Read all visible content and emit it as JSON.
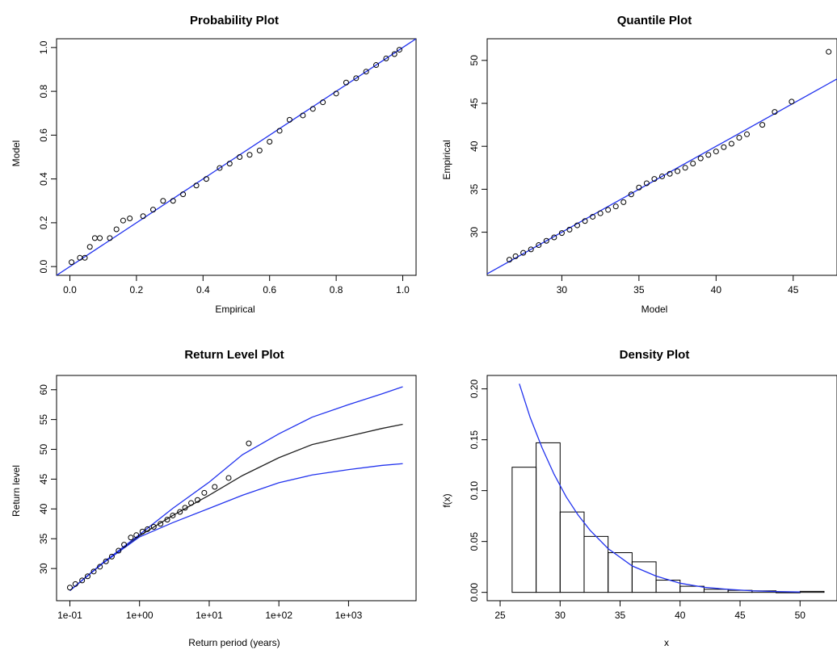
{
  "chart_data": [
    {
      "type": "scatter",
      "title": "Probability Plot",
      "xlabel": "Empirical",
      "ylabel": "Model",
      "xlim": [
        0,
        1
      ],
      "ylim": [
        0,
        1
      ],
      "xticks": [
        0.0,
        0.2,
        0.4,
        0.6,
        0.8,
        1.0
      ],
      "xtick_labels": [
        "0.0",
        "0.2",
        "0.4",
        "0.6",
        "0.8",
        "1.0"
      ],
      "yticks": [
        0.0,
        0.2,
        0.4,
        0.6,
        0.8,
        1.0
      ],
      "ytick_labels": [
        "0.0",
        "0.2",
        "0.4",
        "0.6",
        "0.8",
        "1.0"
      ],
      "series": [
        {
          "marker": "open-circle",
          "x": [
            0.005,
            0.03,
            0.045,
            0.06,
            0.075,
            0.09,
            0.12,
            0.14,
            0.16,
            0.18,
            0.22,
            0.25,
            0.28,
            0.31,
            0.34,
            0.38,
            0.41,
            0.45,
            0.48,
            0.51,
            0.54,
            0.57,
            0.6,
            0.63,
            0.66,
            0.7,
            0.73,
            0.76,
            0.8,
            0.83,
            0.86,
            0.89,
            0.92,
            0.95,
            0.975,
            0.99
          ],
          "y": [
            0.02,
            0.04,
            0.04,
            0.09,
            0.13,
            0.13,
            0.13,
            0.17,
            0.21,
            0.22,
            0.23,
            0.26,
            0.3,
            0.3,
            0.33,
            0.37,
            0.4,
            0.45,
            0.47,
            0.5,
            0.51,
            0.53,
            0.57,
            0.62,
            0.67,
            0.69,
            0.72,
            0.75,
            0.79,
            0.84,
            0.86,
            0.89,
            0.92,
            0.95,
            0.97,
            0.99
          ]
        }
      ],
      "reference_line": {
        "from": [
          0,
          0
        ],
        "to": [
          1,
          1
        ],
        "color": "#2233ee"
      }
    },
    {
      "type": "scatter",
      "title": "Quantile Plot",
      "xlabel": "Model",
      "ylabel": "Empirical",
      "xlim": [
        26,
        47
      ],
      "ylim": [
        26,
        51.5
      ],
      "xticks": [
        30,
        35,
        40,
        45
      ],
      "xtick_labels": [
        "30",
        "35",
        "40",
        "45"
      ],
      "yticks": [
        30,
        35,
        40,
        45,
        50
      ],
      "ytick_labels": [
        "30",
        "35",
        "40",
        "45",
        "50"
      ],
      "series": [
        {
          "marker": "open-circle",
          "x": [
            26.6,
            27.0,
            27.5,
            28.0,
            28.5,
            29.0,
            29.5,
            30.0,
            30.5,
            31.0,
            31.5,
            32.0,
            32.5,
            33.0,
            33.5,
            34.0,
            34.5,
            35.0,
            35.5,
            36.0,
            36.5,
            37.0,
            37.5,
            38.0,
            38.5,
            39.0,
            39.5,
            40.0,
            40.5,
            41.0,
            41.5,
            42.0,
            43.0,
            43.8,
            44.9,
            47.3
          ],
          "y": [
            26.8,
            27.2,
            27.6,
            28.0,
            28.5,
            29.0,
            29.4,
            29.9,
            30.3,
            30.8,
            31.3,
            31.8,
            32.2,
            32.6,
            33.0,
            33.5,
            34.4,
            35.2,
            35.7,
            36.2,
            36.5,
            36.8,
            37.1,
            37.5,
            38.0,
            38.6,
            39.0,
            39.4,
            39.9,
            40.3,
            41.0,
            41.4,
            42.5,
            44.0,
            45.2,
            51.0
          ]
        }
      ],
      "reference_line": {
        "from": [
          26,
          26
        ],
        "to": [
          47,
          47
        ],
        "color": "#2233ee"
      }
    },
    {
      "type": "line",
      "title": "Return Level Plot",
      "xlabel": "Return period (years)",
      "ylabel": "Return level",
      "x_scale": "log",
      "xlim": [
        0.1,
        6000
      ],
      "ylim": [
        26,
        61
      ],
      "xticks": [
        0.1,
        1,
        10,
        100,
        1000
      ],
      "xtick_labels": [
        "1e-01",
        "1e+00",
        "1e+01",
        "1e+02",
        "1e+03"
      ],
      "yticks": [
        30,
        35,
        40,
        45,
        50,
        55,
        60
      ],
      "ytick_labels": [
        "30",
        "35",
        "40",
        "45",
        "50",
        "55",
        "60"
      ],
      "series": [
        {
          "role": "estimate",
          "color": "#222222",
          "x": [
            0.1,
            0.3,
            1,
            3,
            10,
            30,
            100,
            300,
            1000,
            3000,
            6000
          ],
          "y": [
            26.3,
            31.0,
            35.5,
            38.9,
            42.3,
            45.6,
            48.6,
            50.8,
            52.2,
            53.5,
            54.2
          ]
        },
        {
          "role": "upper",
          "color": "#2233ee",
          "x": [
            0.1,
            0.3,
            1,
            3,
            10,
            30,
            100,
            300,
            1000,
            3000,
            6000
          ],
          "y": [
            26.3,
            31.0,
            35.7,
            40.1,
            44.5,
            49.1,
            52.6,
            55.4,
            57.5,
            59.3,
            60.5
          ]
        },
        {
          "role": "lower",
          "color": "#2233ee",
          "x": [
            0.1,
            0.3,
            1,
            3,
            10,
            30,
            100,
            300,
            1000,
            3000,
            6000
          ],
          "y": [
            26.3,
            30.9,
            35.3,
            37.7,
            40.1,
            42.3,
            44.4,
            45.7,
            46.6,
            47.3,
            47.6
          ]
        },
        {
          "role": "observed",
          "marker": "open-circle",
          "x": [
            0.1,
            0.12,
            0.15,
            0.18,
            0.22,
            0.27,
            0.33,
            0.4,
            0.5,
            0.6,
            0.75,
            0.9,
            1.1,
            1.3,
            1.6,
            2.0,
            2.5,
            3.0,
            3.8,
            4.5,
            5.5,
            6.8,
            8.5,
            12.0,
            19.0,
            37.0
          ],
          "y": [
            26.8,
            27.4,
            28.0,
            28.7,
            29.5,
            30.3,
            31.2,
            32.0,
            33.0,
            34.0,
            35.2,
            35.6,
            36.2,
            36.6,
            37.0,
            37.5,
            38.2,
            38.9,
            39.5,
            40.2,
            41.0,
            41.5,
            42.7,
            43.7,
            45.2,
            51.0
          ]
        }
      ]
    },
    {
      "type": "bar",
      "title": "Density Plot",
      "xlabel": "x",
      "ylabel": "f(x)",
      "xlim": [
        25,
        52
      ],
      "ylim": [
        0,
        0.205
      ],
      "xticks": [
        25,
        30,
        35,
        40,
        45,
        50
      ],
      "xtick_labels": [
        "25",
        "30",
        "35",
        "40",
        "45",
        "50"
      ],
      "yticks": [
        0.0,
        0.05,
        0.1,
        0.15,
        0.2
      ],
      "ytick_labels": [
        "0.00",
        "0.05",
        "0.10",
        "0.15",
        "0.20"
      ],
      "histogram": {
        "bin_edges": [
          26,
          28,
          30,
          32,
          34,
          36,
          38,
          40,
          42,
          44,
          46,
          48,
          50,
          52
        ],
        "density": [
          0.123,
          0.147,
          0.079,
          0.055,
          0.039,
          0.03,
          0.012,
          0.006,
          0.003,
          0.002,
          0.0015,
          0.0,
          0.001
        ]
      },
      "density_curve": {
        "color": "#2233ee",
        "x": [
          26.6,
          27.5,
          28.5,
          29.5,
          30.5,
          31.5,
          32.5,
          34,
          36,
          38,
          40,
          42,
          44,
          46,
          48,
          50
        ],
        "y": [
          0.205,
          0.172,
          0.142,
          0.116,
          0.094,
          0.076,
          0.061,
          0.043,
          0.026,
          0.016,
          0.009,
          0.005,
          0.003,
          0.0015,
          0.0008,
          0.0004
        ]
      }
    }
  ]
}
